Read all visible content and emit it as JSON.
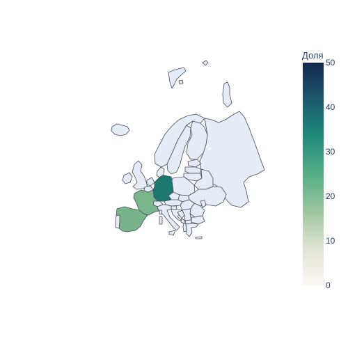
{
  "colorbar": {
    "title": "Доля",
    "ticks": [
      "50",
      "40",
      "30",
      "20",
      "10",
      "0"
    ],
    "range": [
      0,
      50
    ],
    "colors": [
      "#fdf7f4",
      "#dfe3d4",
      "#9ec79e",
      "#55ad86",
      "#1f8a7c",
      "#1c5a6e",
      "#14294b"
    ]
  },
  "map": {
    "scope": "europe",
    "default_fill": "#e5ecf6",
    "border_color": "#444a55",
    "highlighted": [
      {
        "country": "Germany",
        "value": 35,
        "color": "#1b7a72"
      },
      {
        "country": "France",
        "value": 22,
        "color": "#7bb58d"
      },
      {
        "country": "Spain",
        "value": 23,
        "color": "#78b38b"
      }
    ]
  }
}
